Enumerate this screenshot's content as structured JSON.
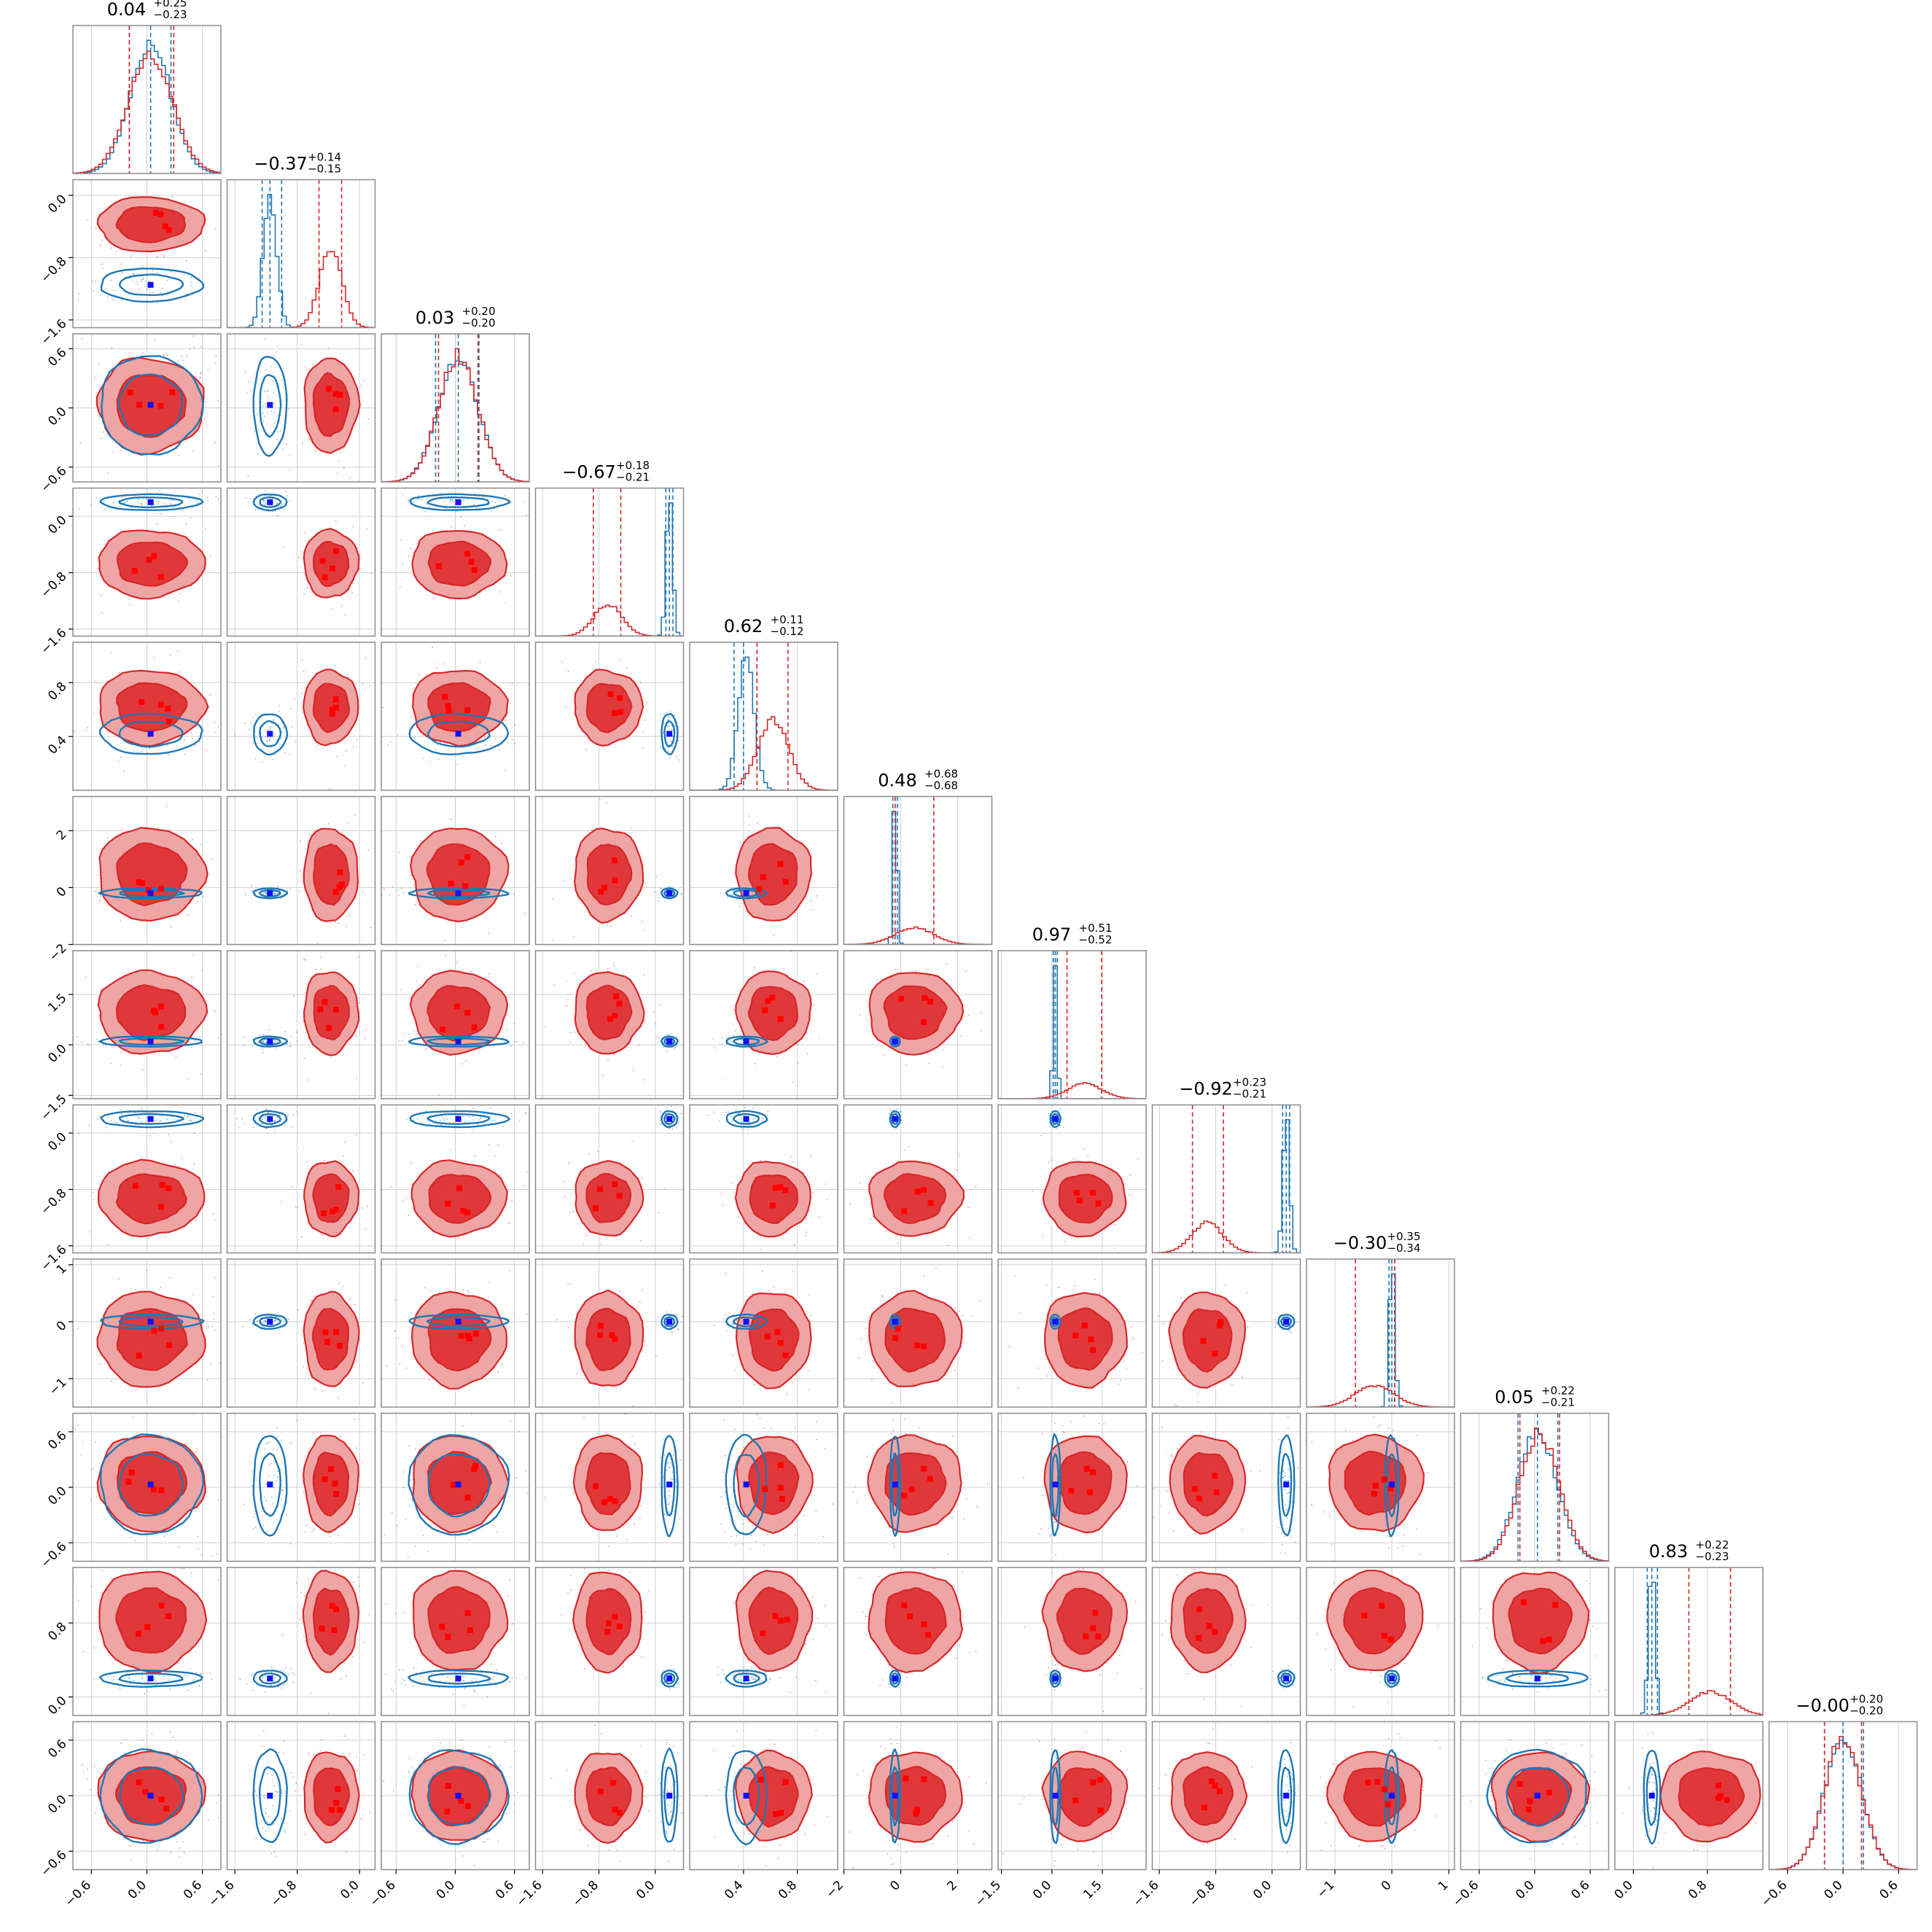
{
  "chart_data": {
    "type": "corner",
    "n_params": 12,
    "grid": true,
    "colors": {
      "red": "#d62728",
      "red_fill_light": "#f0a5a5",
      "red_fill_dark": "#e0383a",
      "blue": "#1f77b4",
      "blue_marker": "#1010ff",
      "red_marker": "#ff0000"
    },
    "titles": [
      {
        "main": "0.04",
        "plus": "+0.25",
        "minus": "−0.23"
      },
      {
        "main": "−0.37",
        "plus": "+0.14",
        "minus": "−0.15"
      },
      {
        "main": "0.03",
        "plus": "+0.20",
        "minus": "−0.20"
      },
      {
        "main": "−0.67",
        "plus": "+0.18",
        "minus": "−0.21"
      },
      {
        "main": "0.62",
        "plus": "+0.11",
        "minus": "−0.12"
      },
      {
        "main": "0.48",
        "plus": "+0.68",
        "minus": "−0.68"
      },
      {
        "main": "0.97",
        "plus": "+0.51",
        "minus": "−0.52"
      },
      {
        "main": "−0.92",
        "plus": "+0.23",
        "minus": "−0.21"
      },
      {
        "main": "−0.30",
        "plus": "+0.35",
        "minus": "−0.34"
      },
      {
        "main": "0.05",
        "plus": "+0.22",
        "minus": "−0.21"
      },
      {
        "main": "0.83",
        "plus": "+0.22",
        "minus": "−0.23"
      },
      {
        "main": "−0.00",
        "plus": "+0.20",
        "minus": "−0.20"
      }
    ],
    "params": [
      {
        "range": [
          -0.8,
          0.8
        ],
        "ticks": [
          -0.6,
          0.0,
          0.6
        ],
        "tick_labels": [
          "−0.6",
          "0.0",
          "0.6"
        ],
        "red": {
          "mean": 0.04,
          "sd": 0.24
        },
        "blue": {
          "mean": 0.04,
          "sd": 0.22
        },
        "red_q": [
          -0.19,
          0.04,
          0.29
        ],
        "blue_q": [
          -0.19,
          0.04,
          0.26
        ]
      },
      {
        "range": [
          -1.7,
          0.2
        ],
        "ticks": [
          -1.6,
          -0.8,
          0.0
        ],
        "tick_labels": [
          "−1.6",
          "−0.8",
          "0.0"
        ],
        "red": {
          "mean": -0.37,
          "sd": 0.145
        },
        "blue": {
          "mean": -1.15,
          "sd": 0.085
        },
        "red_q": [
          -0.52,
          -0.37,
          -0.23
        ],
        "blue_q": [
          -1.25,
          -1.15,
          -1.0
        ]
      },
      {
        "range": [
          -0.75,
          0.75
        ],
        "ticks": [
          -0.6,
          0.0,
          0.6
        ],
        "tick_labels": [
          "−0.6",
          "0.0",
          "0.6"
        ],
        "red": {
          "mean": 0.03,
          "sd": 0.2
        },
        "blue": {
          "mean": 0.03,
          "sd": 0.2
        },
        "red_q": [
          -0.17,
          0.03,
          0.23
        ],
        "blue_q": [
          -0.2,
          0.03,
          0.24
        ]
      },
      {
        "range": [
          -1.7,
          0.4
        ],
        "ticks": [
          -1.6,
          -0.8,
          0.0
        ],
        "tick_labels": [
          "−1.6",
          "−0.8",
          "0.0"
        ],
        "red": {
          "mean": -0.67,
          "sd": 0.2
        },
        "blue": {
          "mean": 0.2,
          "sd": 0.045
        },
        "red_q": [
          -0.88,
          -0.67,
          -0.49
        ],
        "blue_q": [
          0.15,
          0.2,
          0.25
        ]
      },
      {
        "range": [
          0.0,
          1.1
        ],
        "ticks": [
          0.4,
          0.8
        ],
        "tick_labels": [
          "0.4",
          "0.8"
        ],
        "red": {
          "mean": 0.62,
          "sd": 0.115
        },
        "blue": {
          "mean": 0.42,
          "sd": 0.06
        },
        "red_q": [
          0.5,
          0.62,
          0.73
        ],
        "blue_q": [
          0.33,
          0.4,
          0.5
        ]
      },
      {
        "range": [
          -2.0,
          3.2
        ],
        "ticks": [
          -2,
          0,
          2
        ],
        "tick_labels": [
          "−2",
          "0",
          "2"
        ],
        "red": {
          "mean": 0.48,
          "sd": 0.68
        },
        "blue": {
          "mean": -0.2,
          "sd": 0.07
        },
        "red_q": [
          -0.2,
          0.48,
          1.16
        ],
        "blue_q": [
          -0.28,
          -0.2,
          -0.12
        ]
      },
      {
        "range": [
          -1.6,
          2.8
        ],
        "ticks": [
          -1.5,
          0.0,
          1.5
        ],
        "tick_labels": [
          "−1.5",
          "0.0",
          "1.5"
        ],
        "red": {
          "mean": 0.97,
          "sd": 0.51
        },
        "blue": {
          "mean": 0.1,
          "sd": 0.06
        },
        "red_q": [
          0.45,
          0.97,
          1.48
        ],
        "blue_q": [
          0.04,
          0.1,
          0.16
        ]
      },
      {
        "range": [
          -1.7,
          0.4
        ],
        "ticks": [
          -1.6,
          -0.8,
          0.0
        ],
        "tick_labels": [
          "−1.6",
          "−0.8",
          "0.0"
        ],
        "red": {
          "mean": -0.92,
          "sd": 0.22
        },
        "blue": {
          "mean": 0.2,
          "sd": 0.045
        },
        "red_q": [
          -1.13,
          -0.92,
          -0.69
        ],
        "blue_q": [
          0.15,
          0.2,
          0.25
        ]
      },
      {
        "range": [
          -1.5,
          1.1
        ],
        "ticks": [
          -1,
          0,
          1
        ],
        "tick_labels": [
          "−1",
          "0",
          "1"
        ],
        "red": {
          "mean": -0.3,
          "sd": 0.345
        },
        "blue": {
          "mean": 0.0,
          "sd": 0.05
        },
        "red_q": [
          -0.64,
          -0.3,
          0.05
        ],
        "blue_q": [
          -0.05,
          0.0,
          0.05
        ]
      },
      {
        "range": [
          -0.8,
          0.8
        ],
        "ticks": [
          -0.6,
          0.0,
          0.6
        ],
        "tick_labels": [
          "−0.6",
          "0.0",
          "0.6"
        ],
        "red": {
          "mean": 0.05,
          "sd": 0.215
        },
        "blue": {
          "mean": 0.03,
          "sd": 0.215
        },
        "red_q": [
          -0.16,
          0.05,
          0.27
        ],
        "blue_q": [
          -0.18,
          0.03,
          0.25
        ]
      },
      {
        "range": [
          -0.2,
          1.4
        ],
        "ticks": [
          0.0,
          0.8
        ],
        "tick_labels": [
          "0.0",
          "0.8"
        ],
        "red": {
          "mean": 0.83,
          "sd": 0.225
        },
        "blue": {
          "mean": 0.2,
          "sd": 0.035
        },
        "red_q": [
          0.6,
          0.83,
          1.05
        ],
        "blue_q": [
          0.15,
          0.2,
          0.26
        ]
      },
      {
        "range": [
          -0.8,
          0.8
        ],
        "ticks": [
          -0.6,
          0.0,
          0.6
        ],
        "tick_labels": [
          "−0.6",
          "0.0",
          "0.6"
        ],
        "red": {
          "mean": 0.0,
          "sd": 0.2
        },
        "blue": {
          "mean": 0.0,
          "sd": 0.2
        },
        "red_q": [
          -0.2,
          0.0,
          0.2
        ],
        "blue_q": [
          -0.2,
          0.0,
          0.22
        ]
      }
    ]
  }
}
